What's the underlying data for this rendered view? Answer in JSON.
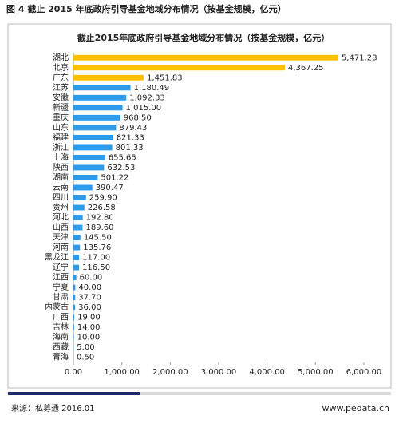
{
  "header": {
    "title": "图 4 截止 2015 年底政府引导基金地域分布情况（按基金规模，亿元）"
  },
  "chart_data": {
    "type": "bar",
    "orientation": "horizontal",
    "title": "截止2015年底政府引导基金地域分布情况（按基金规模，亿元）",
    "categories": [
      "湖北",
      "北京",
      "广东",
      "江苏",
      "安徽",
      "新疆",
      "重庆",
      "山东",
      "福建",
      "浙江",
      "上海",
      "陕西",
      "湖南",
      "云南",
      "四川",
      "贵州",
      "河北",
      "山西",
      "天津",
      "河南",
      "黑龙江",
      "辽宁",
      "江西",
      "宁夏",
      "甘肃",
      "内蒙古",
      "广西",
      "吉林",
      "海南",
      "西藏",
      "青海"
    ],
    "values": [
      5471.28,
      4367.25,
      1451.83,
      1180.49,
      1092.33,
      1015.0,
      968.5,
      879.43,
      821.33,
      801.33,
      655.65,
      632.53,
      501.22,
      390.47,
      259.9,
      226.58,
      192.8,
      189.6,
      145.5,
      135.76,
      117.0,
      116.5,
      60.0,
      40.0,
      37.7,
      36.0,
      19.0,
      14.0,
      10.0,
      5.0,
      0.5
    ],
    "value_labels": [
      "5,471.28",
      "4,367.25",
      "1,451.83",
      "1,180.49",
      "1,092.33",
      "1,015.00",
      "968.50",
      "879.43",
      "821.33",
      "801.33",
      "655.65",
      "632.53",
      "501.22",
      "390.47",
      "259.90",
      "226.58",
      "192.80",
      "189.60",
      "145.50",
      "135.76",
      "117.00",
      "116.50",
      "60.00",
      "40.00",
      "37.70",
      "36.00",
      "19.00",
      "14.00",
      "10.00",
      "5.00",
      "0.50"
    ],
    "colors": [
      "#ffc000",
      "#ffc000",
      "#ffc000",
      "#2e9bea",
      "#2e9bea",
      "#2e9bea",
      "#2e9bea",
      "#2e9bea",
      "#2e9bea",
      "#2e9bea",
      "#2e9bea",
      "#2e9bea",
      "#2e9bea",
      "#2e9bea",
      "#2e9bea",
      "#2e9bea",
      "#2e9bea",
      "#2e9bea",
      "#2e9bea",
      "#2e9bea",
      "#2e9bea",
      "#2e9bea",
      "#2e9bea",
      "#2e9bea",
      "#2e9bea",
      "#2e9bea",
      "#2e9bea",
      "#2e9bea",
      "#2e9bea",
      "#2e9bea",
      "#2e9bea"
    ],
    "xlim": [
      0,
      6000
    ],
    "xticks": [
      {
        "value": 0,
        "label": "0.00"
      },
      {
        "value": 1000,
        "label": "1,000.00"
      },
      {
        "value": 2000,
        "label": "2,000.00"
      },
      {
        "value": 3000,
        "label": "3,000.00"
      },
      {
        "value": 4000,
        "label": "4,000.00"
      },
      {
        "value": 5000,
        "label": "5,000.00"
      },
      {
        "value": 6000,
        "label": "6,000.00"
      }
    ],
    "grid": false
  },
  "footer": {
    "source": "来源：私募通 2016.01",
    "url": "www.pedata.cn"
  }
}
